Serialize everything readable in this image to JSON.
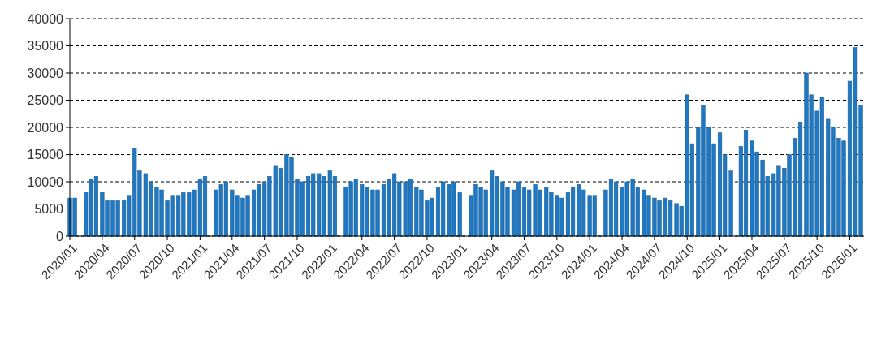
{
  "chart_data": {
    "type": "bar",
    "x": [
      "2020-01-01",
      "2020-01-15",
      "2020-02-01",
      "2020-02-15",
      "2020-03-01",
      "2020-03-15",
      "2020-04-01",
      "2020-04-15",
      "2020-05-01",
      "2020-05-15",
      "2020-06-01",
      "2020-06-15",
      "2020-07-01",
      "2020-07-15",
      "2020-08-01",
      "2020-08-15",
      "2020-09-01",
      "2020-09-15",
      "2020-10-01",
      "2020-10-15",
      "2020-11-01",
      "2020-11-15",
      "2020-12-01",
      "2020-12-15",
      "2021-01-01",
      "2021-01-15",
      "2021-02-01",
      "2021-02-15",
      "2021-03-01",
      "2021-03-15",
      "2021-04-01",
      "2021-04-15",
      "2021-05-01",
      "2021-05-15",
      "2021-06-01",
      "2021-06-15",
      "2021-07-01",
      "2021-07-15",
      "2021-08-01",
      "2021-08-15",
      "2021-09-01",
      "2021-09-15",
      "2021-10-01",
      "2021-10-15",
      "2021-11-01",
      "2021-11-15",
      "2021-12-01",
      "2021-12-15",
      "2022-01-01",
      "2022-01-15",
      "2022-02-01",
      "2022-02-15",
      "2022-03-01",
      "2022-03-15",
      "2022-04-01",
      "2022-04-15",
      "2022-05-01",
      "2022-05-15",
      "2022-06-01",
      "2022-06-15",
      "2022-07-01",
      "2022-07-15",
      "2022-08-01",
      "2022-08-15",
      "2022-09-01",
      "2022-09-15",
      "2022-10-01",
      "2022-10-15",
      "2022-11-01",
      "2022-11-15",
      "2022-12-01",
      "2022-12-15",
      "2023-01-01",
      "2023-01-15",
      "2023-02-01",
      "2023-02-15",
      "2023-03-01",
      "2023-03-15",
      "2023-04-01",
      "2023-04-15",
      "2023-05-01",
      "2023-05-15",
      "2023-06-01",
      "2023-06-15",
      "2023-07-01",
      "2023-07-15",
      "2023-08-01",
      "2023-08-15",
      "2023-09-01",
      "2023-09-15",
      "2023-10-01",
      "2023-10-15",
      "2023-11-01",
      "2023-11-15",
      "2023-12-01",
      "2023-12-15",
      "2024-01-01",
      "2024-01-15",
      "2024-02-01",
      "2024-02-15",
      "2024-03-01",
      "2024-03-15",
      "2024-04-01",
      "2024-04-15",
      "2024-05-01",
      "2024-05-15",
      "2024-06-01",
      "2024-06-15",
      "2024-07-01",
      "2024-07-15",
      "2024-08-01",
      "2024-08-15",
      "2024-09-01",
      "2024-09-15",
      "2024-10-01",
      "2024-10-15",
      "2024-11-01",
      "2024-11-15",
      "2024-12-01",
      "2024-12-15",
      "2025-01-01",
      "2025-01-15",
      "2025-02-01",
      "2025-02-15",
      "2025-03-01",
      "2025-03-15",
      "2025-04-01",
      "2025-04-15",
      "2025-05-01",
      "2025-05-15",
      "2025-06-01",
      "2025-06-15",
      "2025-07-01",
      "2025-07-15",
      "2025-08-01",
      "2025-08-15",
      "2025-09-01",
      "2025-09-15",
      "2025-10-01",
      "2025-10-15",
      "2025-11-01",
      "2025-11-15",
      "2025-12-01",
      "2025-12-15",
      "2026-01-01",
      "2026-01-15",
      "2026-02-01"
    ],
    "series": [
      {
        "color": "#1f78c1",
        "values": [
          7000,
          7000,
          null,
          8000,
          10500,
          11000,
          8000,
          6500,
          6500,
          6500,
          6500,
          7500,
          16200,
          12000,
          11500,
          10000,
          9000,
          8500,
          6500,
          7500,
          7500,
          8000,
          8000,
          8500,
          10500,
          11000,
          null,
          8500,
          9500,
          10000,
          8500,
          7500,
          7000,
          7500,
          8500,
          9500,
          10000,
          11000,
          13000,
          12500,
          15000,
          14500,
          10500,
          10000,
          11000,
          11500,
          11500,
          11000,
          12000,
          11000,
          null,
          9000,
          10000,
          10500,
          9500,
          9000,
          8500,
          8500,
          9500,
          10500,
          11500,
          10000,
          10000,
          10500,
          9000,
          8500,
          6500,
          7000,
          9000,
          10000,
          9500,
          10000,
          8000,
          null,
          7500,
          9500,
          9000,
          8500,
          12000,
          11000,
          10000,
          9000,
          8500,
          10000,
          9000,
          8500,
          9500,
          8500,
          9000,
          8000,
          7500,
          7000,
          8000,
          9000,
          9500,
          8500,
          7500,
          7500,
          null,
          8500,
          10500,
          10000,
          9000,
          10000,
          10500,
          9000,
          8500,
          7500,
          7000,
          6500,
          7000,
          6500,
          6000,
          5500,
          26000,
          17000,
          20000,
          24000,
          20000,
          17000,
          19000,
          15000,
          12000,
          null,
          16500,
          19500,
          17500,
          15500,
          14000,
          11000,
          11500,
          13000,
          12500,
          15000,
          18000,
          21000,
          30000,
          26000,
          23000,
          25500,
          21500,
          20000,
          18000,
          17500,
          28500,
          34700,
          24000
        ]
      }
    ],
    "xlim": [
      "2020-01-01",
      "2026-02-10"
    ],
    "xticks": [
      {
        "value": "2020-01",
        "label": "2020/01"
      },
      {
        "value": "2020-04",
        "label": "2020/04"
      },
      {
        "value": "2020-07",
        "label": "2020/07"
      },
      {
        "value": "2020-10",
        "label": "2020/10"
      },
      {
        "value": "2021-01",
        "label": "2021/01"
      },
      {
        "value": "2021-04",
        "label": "2021/04"
      },
      {
        "value": "2021-07",
        "label": "2021/07"
      },
      {
        "value": "2021-10",
        "label": "2021/10"
      },
      {
        "value": "2022-01",
        "label": "2022/01"
      },
      {
        "value": "2022-04",
        "label": "2022/04"
      },
      {
        "value": "2022-07",
        "label": "2022/07"
      },
      {
        "value": "2022-10",
        "label": "2022/10"
      },
      {
        "value": "2023-01",
        "label": "2023/01"
      },
      {
        "value": "2023-04",
        "label": "2023/04"
      },
      {
        "value": "2023-07",
        "label": "2023/07"
      },
      {
        "value": "2023-10",
        "label": "2023/10"
      },
      {
        "value": "2024-01",
        "label": "2024/01"
      },
      {
        "value": "2024-04",
        "label": "2024/04"
      },
      {
        "value": "2024-07",
        "label": "2024/07"
      },
      {
        "value": "2024-10",
        "label": "2024/10"
      },
      {
        "value": "2025-01",
        "label": "2025/01"
      },
      {
        "value": "2025-04",
        "label": "2025/04"
      },
      {
        "value": "2025-07",
        "label": "2025/07"
      },
      {
        "value": "2025-10",
        "label": "2025/10"
      },
      {
        "value": "2026-01",
        "label": "2026/01"
      }
    ],
    "ylim": [
      0,
      40000
    ],
    "yticks": [
      0,
      5000,
      10000,
      15000,
      20000,
      25000,
      30000,
      35000,
      40000
    ],
    "grid": "y"
  }
}
